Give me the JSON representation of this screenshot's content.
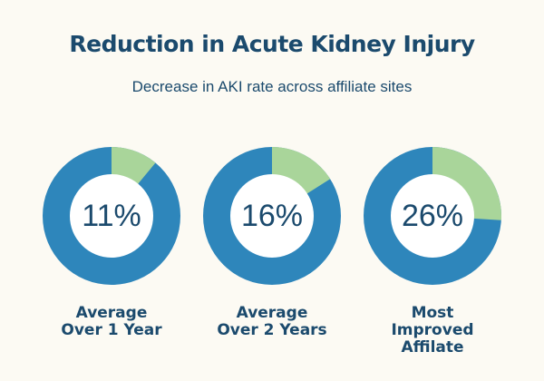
{
  "chart_data": {
    "type": "pie",
    "title": "Reduction in Acute Kidney Injury",
    "subtitle": "Decrease in AKI rate across affiliate sites",
    "colors": {
      "highlight": "#a9d59a",
      "remainder": "#2e86bb",
      "text": "#1b4a6d",
      "background": "#fcfaf3"
    },
    "charts": [
      {
        "value": 11,
        "display": "11%",
        "label_lines": [
          "Average",
          "Over 1 Year"
        ]
      },
      {
        "value": 16,
        "display": "16%",
        "label_lines": [
          "Average",
          "Over 2 Years"
        ]
      },
      {
        "value": 26,
        "display": "26%",
        "label_lines": [
          "Most",
          "Improved",
          "Affilate"
        ]
      }
    ]
  }
}
